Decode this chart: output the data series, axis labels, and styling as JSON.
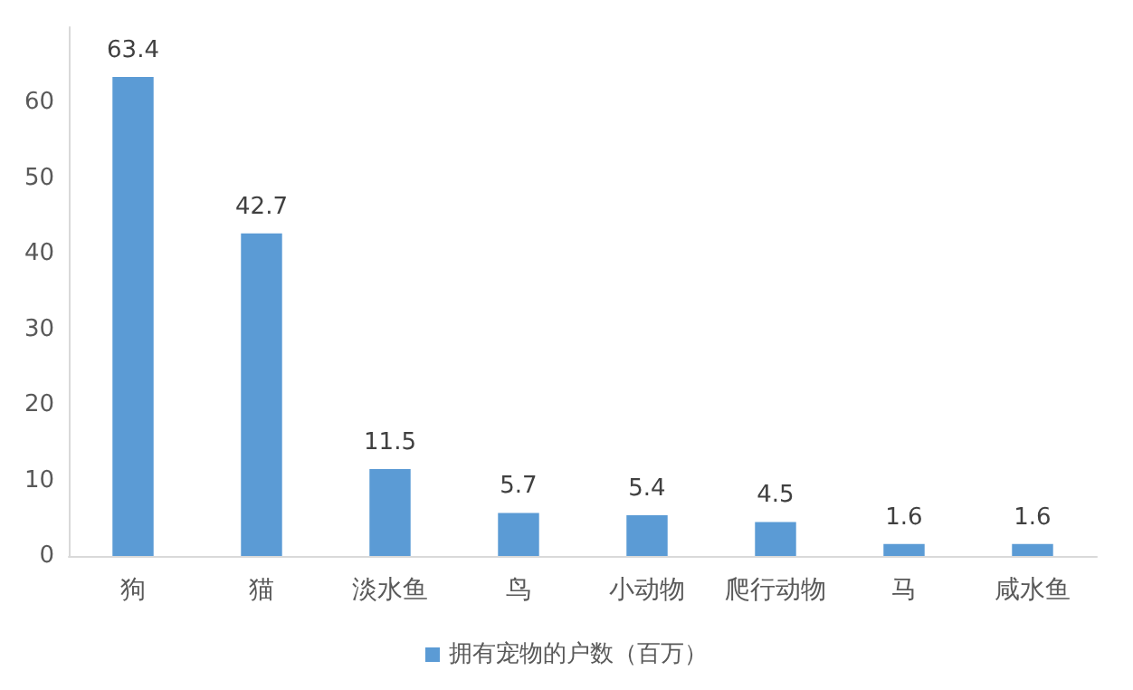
{
  "chart_data": {
    "type": "bar",
    "categories": [
      "狗",
      "猫",
      "淡水鱼",
      "鸟",
      "小动物",
      "爬行动物",
      "马",
      "咸水鱼"
    ],
    "series": [
      {
        "name": "拥有宠物的户数（百万）",
        "color": "#5b9bd5",
        "values": [
          63.4,
          42.7,
          11.5,
          5.7,
          5.4,
          4.5,
          1.6,
          1.6
        ]
      }
    ],
    "ylim": [
      0,
      70
    ],
    "yticks": [
      0,
      10,
      20,
      30,
      40,
      50,
      60
    ],
    "grid": false,
    "legend": "bottom",
    "data_labels": true
  }
}
